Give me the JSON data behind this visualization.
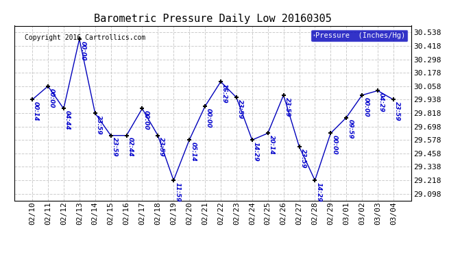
{
  "title": "Barometric Pressure Daily Low 20160305",
  "copyright": "Copyright 2016 Cartrollics.com",
  "legend_label": "Pressure  (Inches/Hg)",
  "background_color": "#ffffff",
  "plot_bg_color": "#ffffff",
  "line_color": "#0000bb",
  "marker_color": "#000000",
  "grid_color": "#cccccc",
  "border_color": "#000000",
  "ylim": [
    29.038,
    30.598
  ],
  "yticks": [
    29.098,
    29.218,
    29.338,
    29.458,
    29.578,
    29.698,
    29.818,
    29.938,
    30.058,
    30.178,
    30.298,
    30.418,
    30.538
  ],
  "dates": [
    "02/10",
    "02/11",
    "02/12",
    "02/13",
    "02/14",
    "02/15",
    "02/16",
    "02/17",
    "02/18",
    "02/19",
    "02/20",
    "02/21",
    "02/22",
    "02/23",
    "02/24",
    "02/25",
    "02/26",
    "02/27",
    "02/28",
    "02/29",
    "03/01",
    "03/02",
    "03/03",
    "03/04"
  ],
  "values": [
    29.938,
    30.058,
    29.858,
    30.478,
    29.818,
    29.618,
    29.618,
    29.858,
    29.618,
    29.218,
    29.578,
    29.878,
    30.098,
    29.958,
    29.578,
    29.638,
    29.978,
    29.518,
    29.218,
    29.638,
    29.778,
    29.978,
    30.018,
    29.938
  ],
  "annotations": [
    "00:14",
    "00:00",
    "04:44",
    "00:00",
    "23:59",
    "23:59",
    "02:44",
    "00:00",
    "23:59",
    "11:59",
    "05:14",
    "00:00",
    "16:29",
    "23:59",
    "14:29",
    "20:14",
    "23:59",
    "23:59",
    "14:29",
    "00:00",
    "09:59",
    "00:00",
    "04:29",
    "23:59"
  ],
  "ann_color": "#0000cc",
  "title_fontsize": 11,
  "tick_fontsize": 8,
  "ann_fontsize": 6.5,
  "legend_bg": "#0000bb",
  "legend_text_color": "#ffffff",
  "copyright_fontsize": 7
}
